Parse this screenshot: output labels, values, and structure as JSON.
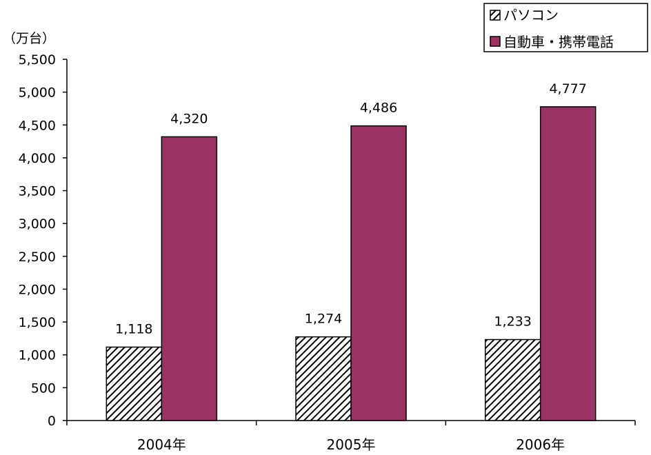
{
  "chart_data": {
    "type": "bar",
    "unit_label": "（万台）",
    "categories": [
      "2004年",
      "2005年",
      "2006年"
    ],
    "series": [
      {
        "name": "パソコン",
        "values": [
          1118,
          1274,
          1233
        ],
        "value_labels": [
          "1,118",
          "1,274",
          "1,233"
        ],
        "fill": "hatched",
        "color": "#000000"
      },
      {
        "name": "自動車・携帯電話",
        "values": [
          4320,
          4486,
          4777
        ],
        "value_labels": [
          "4,320",
          "4,486",
          "4,777"
        ],
        "fill": "solid",
        "color": "#993366"
      }
    ],
    "ylim": [
      0,
      5500
    ],
    "yticks": [
      0,
      500,
      1000,
      1500,
      2000,
      2500,
      3000,
      3500,
      4000,
      4500,
      5000,
      5500
    ],
    "ytick_labels": [
      "0",
      "500",
      "1,000",
      "1,500",
      "2,000",
      "2,500",
      "3,000",
      "3,500",
      "4,000",
      "4,500",
      "5,000",
      "5,500"
    ],
    "grid": false,
    "legend_position": "top-right"
  }
}
